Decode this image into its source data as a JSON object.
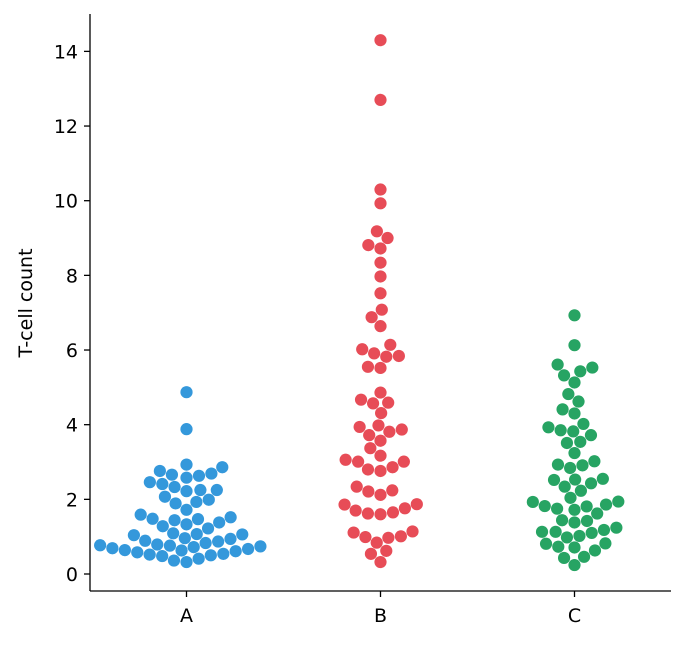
{
  "chart_data": {
    "type": "scatter",
    "subtype": "swarm",
    "title": "",
    "xlabel": "",
    "ylabel": "T-cell count",
    "ylim": [
      -0.5,
      15
    ],
    "categories": [
      "A",
      "B",
      "C"
    ],
    "yticks": [
      0,
      2,
      4,
      6,
      8,
      10,
      12,
      14
    ],
    "ytick_labels": [
      "0",
      "2",
      "4",
      "6",
      "8",
      "10",
      "12",
      "14"
    ],
    "grid": false,
    "legend": "none",
    "series": [
      {
        "category": "A",
        "color": "#3498db",
        "values": [
          4.87,
          3.88,
          2.93,
          2.86,
          2.76,
          2.69,
          2.66,
          2.63,
          2.58,
          2.46,
          2.41,
          2.33,
          2.25,
          2.25,
          2.22,
          2.07,
          1.99,
          1.93,
          1.89,
          1.72,
          1.59,
          1.52,
          1.48,
          1.47,
          1.44,
          1.38,
          1.33,
          1.28,
          1.22,
          1.09,
          1.07,
          1.06,
          1.04,
          0.96,
          0.94,
          0.89,
          0.87,
          0.83,
          0.79,
          0.77,
          0.76,
          0.74,
          0.72,
          0.69,
          0.67,
          0.64,
          0.63,
          0.61,
          0.58,
          0.54,
          0.52,
          0.5,
          0.48,
          0.41,
          0.36,
          0.32
        ]
      },
      {
        "category": "B",
        "color": "#e74c57",
        "values": [
          14.3,
          12.7,
          10.3,
          9.93,
          9.18,
          9.0,
          8.81,
          8.72,
          8.34,
          7.97,
          7.52,
          7.08,
          6.88,
          6.64,
          6.14,
          6.02,
          5.91,
          5.84,
          5.82,
          5.55,
          5.52,
          4.86,
          4.67,
          4.59,
          4.57,
          4.31,
          3.98,
          3.94,
          3.87,
          3.81,
          3.72,
          3.57,
          3.37,
          3.17,
          3.06,
          3.01,
          3.01,
          2.86,
          2.8,
          2.76,
          2.34,
          2.24,
          2.21,
          2.12,
          1.87,
          1.86,
          1.76,
          1.7,
          1.65,
          1.62,
          1.6,
          1.14,
          1.11,
          1.01,
          0.99,
          0.97,
          0.84,
          0.62,
          0.54,
          0.32
        ]
      },
      {
        "category": "C",
        "color": "#27a463",
        "values": [
          6.93,
          6.13,
          5.61,
          5.53,
          5.43,
          5.32,
          5.13,
          4.82,
          4.62,
          4.41,
          4.3,
          4.02,
          3.93,
          3.85,
          3.82,
          3.72,
          3.54,
          3.51,
          3.24,
          3.02,
          2.93,
          2.91,
          2.84,
          2.55,
          2.53,
          2.52,
          2.43,
          2.34,
          2.23,
          2.04,
          1.94,
          1.93,
          1.86,
          1.82,
          1.81,
          1.75,
          1.72,
          1.62,
          1.44,
          1.42,
          1.38,
          1.24,
          1.18,
          1.13,
          1.13,
          1.1,
          1.02,
          0.98,
          0.82,
          0.81,
          0.73,
          0.71,
          0.63,
          0.46,
          0.43,
          0.24
        ]
      }
    ]
  }
}
